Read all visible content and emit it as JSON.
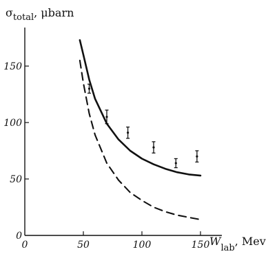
{
  "chart_data": {
    "type": "line",
    "title": "",
    "ylabel": {
      "symbol": "σ",
      "subscript": "total",
      "unit": ", μbarn"
    },
    "xlabel": {
      "symbol": "W",
      "subscript": "lab",
      "unit": ", Mev"
    },
    "xlim": [
      0,
      165
    ],
    "ylim": [
      0,
      175
    ],
    "x_ticks": [
      0,
      50,
      100,
      150
    ],
    "y_ticks": [
      0,
      50,
      100,
      150
    ],
    "grid": false,
    "series": [
      {
        "style": "solid",
        "x": [
          47,
          50,
          55,
          60,
          70,
          80,
          90,
          100,
          110,
          120,
          130,
          140,
          150
        ],
        "y": [
          173,
          160,
          138,
          121,
          99,
          85,
          75,
          68,
          63,
          59,
          56,
          54,
          53
        ]
      },
      {
        "style": "dashed",
        "x": [
          47,
          50,
          55,
          60,
          70,
          80,
          90,
          100,
          110,
          120,
          130,
          140,
          150
        ],
        "y": [
          155,
          135,
          108,
          89,
          64,
          49,
          38,
          31,
          25,
          21,
          18,
          16,
          14
        ]
      }
    ],
    "points": [
      {
        "x": 55,
        "y": 130,
        "err": 4
      },
      {
        "x": 70,
        "y": 105,
        "err": 6
      },
      {
        "x": 88,
        "y": 91,
        "err": 5
      },
      {
        "x": 110,
        "y": 78,
        "err": 5
      },
      {
        "x": 129,
        "y": 64,
        "err": 4
      },
      {
        "x": 147,
        "y": 70,
        "err": 5
      }
    ]
  }
}
